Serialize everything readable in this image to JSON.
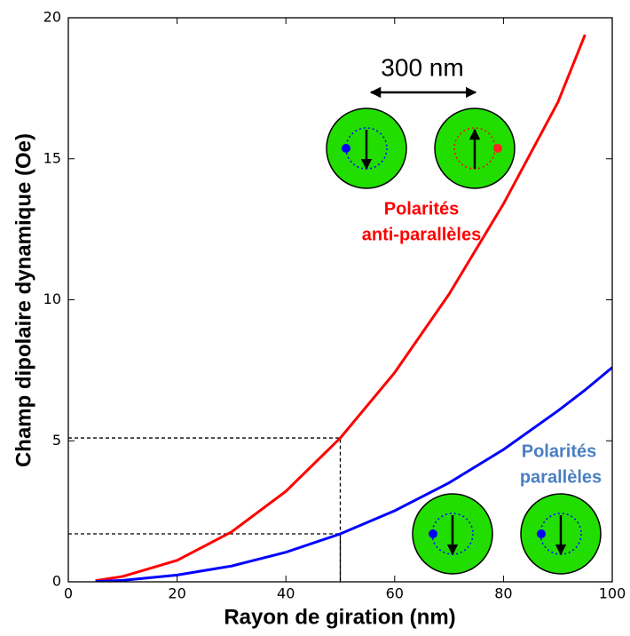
{
  "chart_data": {
    "type": "line",
    "x_label": "Rayon de giration (nm)",
    "y_label": "Champ dipolaire dynamique (Oe)",
    "x": [
      5,
      10,
      20,
      30,
      40,
      50,
      60,
      70,
      80,
      90,
      95,
      100
    ],
    "series": [
      {
        "name": "Polarités anti-parallèles",
        "color": "#ff0000",
        "values": [
          0.04,
          0.19,
          0.76,
          1.77,
          3.21,
          5.1,
          7.42,
          10.2,
          13.4,
          17.0,
          19.4,
          null
        ]
      },
      {
        "name": "Polarités parallèles",
        "color": "#0000ff",
        "values": [
          0.01,
          0.05,
          0.24,
          0.56,
          1.05,
          1.7,
          2.52,
          3.51,
          4.69,
          6.06,
          6.8,
          7.6
        ]
      }
    ],
    "guides": [
      {
        "x": 50,
        "y": 5.1
      },
      {
        "x": 50,
        "y": 1.7
      }
    ],
    "xlim": [
      0,
      100
    ],
    "ylim": [
      0,
      20
    ],
    "xticks": [
      0,
      20,
      40,
      60,
      80,
      100
    ],
    "yticks": [
      0,
      5,
      10,
      15,
      20
    ],
    "annotations": {
      "distance": "300 nm",
      "anti_parallel": [
        "Polarités",
        "anti-parallèles"
      ],
      "anti_parallel_color": "#ff0000",
      "parallel": [
        "Polarités",
        "parallèles"
      ],
      "parallel_color": "#4a7fc1"
    }
  }
}
